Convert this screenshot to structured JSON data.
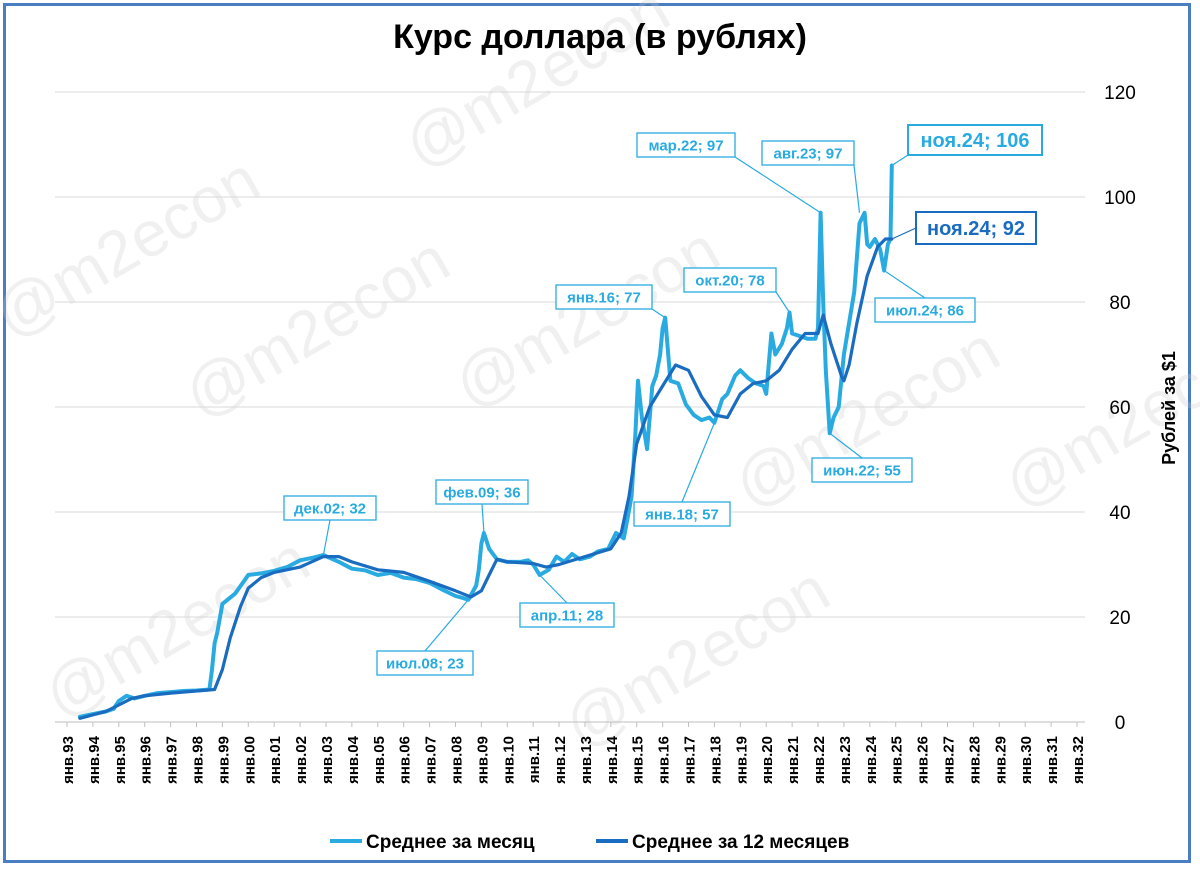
{
  "watermark": "@m2econ",
  "chart_data": {
    "type": "line",
    "title": "Курс доллара (в рублях)",
    "ylabel": "Рублей за $1",
    "xlabel": "",
    "ylim": [
      0,
      120
    ],
    "yticks": [
      0,
      20,
      40,
      60,
      80,
      100,
      120
    ],
    "xlim": [
      1993.5,
      2032
    ],
    "xticks": [
      "янв.93",
      "янв.94",
      "янв.95",
      "янв.96",
      "янв.97",
      "янв.98",
      "янв.99",
      "янв.00",
      "янв.01",
      "янв.02",
      "янв.03",
      "янв.04",
      "янв.05",
      "янв.06",
      "янв.07",
      "янв.08",
      "янв.09",
      "янв.10",
      "янв.11",
      "янв.12",
      "янв.13",
      "янв.14",
      "янв.15",
      "янв.16",
      "янв.17",
      "янв.18",
      "янв.19",
      "янв.20",
      "янв.21",
      "янв.22",
      "янв.23",
      "янв.24",
      "янв.25",
      "янв.26",
      "янв.27",
      "янв.28",
      "янв.29",
      "янв.30",
      "янв.31",
      "янв.32"
    ],
    "grid": true,
    "legend": "bottom",
    "colors": {
      "monthly": "#29abe2",
      "avg12": "#1a6cc0",
      "frame": "#4a7ec2"
    },
    "series": [
      {
        "name": "Среднее за месяц",
        "x": [
          1993.5,
          1994.0,
          1994.5,
          1994.8,
          1995.0,
          1995.3,
          1995.6,
          1996.0,
          1996.5,
          1997.0,
          1997.5,
          1998.0,
          1998.5,
          1998.6,
          1998.7,
          1998.8,
          1999.0,
          1999.5,
          2000.0,
          2000.5,
          2001.0,
          2001.5,
          2002.0,
          2002.5,
          2002.9,
          2003.5,
          2004.0,
          2004.5,
          2005.0,
          2005.5,
          2006.0,
          2006.5,
          2007.0,
          2007.5,
          2008.0,
          2008.3,
          2008.5,
          2008.8,
          2008.9,
          2009.0,
          2009.1,
          2009.3,
          2009.6,
          2010.0,
          2010.5,
          2010.8,
          2011.0,
          2011.25,
          2011.6,
          2011.9,
          2012.2,
          2012.5,
          2012.8,
          2013.2,
          2013.5,
          2013.9,
          2014.2,
          2014.5,
          2014.8,
          2014.95,
          2015.05,
          2015.2,
          2015.4,
          2015.6,
          2015.75,
          2015.9,
          2016.0,
          2016.1,
          2016.3,
          2016.6,
          2016.9,
          2017.2,
          2017.5,
          2017.8,
          2018.0,
          2018.3,
          2018.5,
          2018.8,
          2019.0,
          2019.3,
          2019.6,
          2019.9,
          2020.0,
          2020.2,
          2020.35,
          2020.6,
          2020.8,
          2020.9,
          2021.0,
          2021.3,
          2021.6,
          2021.9,
          2022.0,
          2022.1,
          2022.2,
          2022.3,
          2022.45,
          2022.6,
          2022.8,
          2023.0,
          2023.2,
          2023.4,
          2023.6,
          2023.8,
          2023.9,
          2024.0,
          2024.2,
          2024.4,
          2024.55,
          2024.7,
          2024.8,
          2024.85
        ],
        "values": [
          1.0,
          1.5,
          2.0,
          2.5,
          4.0,
          5.0,
          4.5,
          5.0,
          5.5,
          5.7,
          5.9,
          6.0,
          6.2,
          10.0,
          15.0,
          17.0,
          22.5,
          24.5,
          28.0,
          28.3,
          28.8,
          29.5,
          30.8,
          31.3,
          31.8,
          30.5,
          29.2,
          28.9,
          28.0,
          28.4,
          27.5,
          27.2,
          26.5,
          25.2,
          24.0,
          23.6,
          23.3,
          26.0,
          29.0,
          34.0,
          36.0,
          33.0,
          31.0,
          30.5,
          30.5,
          30.8,
          30.0,
          28.0,
          29.0,
          31.5,
          30.5,
          32.0,
          31.0,
          31.5,
          32.5,
          33.0,
          36.0,
          35.0,
          43.0,
          55.0,
          65.0,
          58.0,
          52.0,
          64.0,
          66.0,
          70.0,
          75.0,
          77.0,
          65.0,
          64.5,
          60.5,
          58.5,
          57.5,
          58.0,
          57.0,
          61.5,
          62.5,
          66.0,
          67.0,
          65.5,
          64.5,
          64.0,
          62.5,
          74.0,
          70.0,
          72.0,
          75.0,
          78.0,
          74.0,
          73.5,
          73.0,
          73.0,
          75.0,
          97.0,
          80.0,
          67.0,
          55.0,
          58.0,
          60.0,
          70.0,
          76.0,
          82.0,
          95.0,
          97.0,
          91.0,
          90.5,
          92.0,
          90.0,
          86.0,
          91.0,
          92.0,
          106.0
        ]
      },
      {
        "name": "Среднее за 12 месяцев",
        "x": [
          1993.5,
          1994.5,
          1995.5,
          1996.0,
          1997.0,
          1998.0,
          1998.7,
          1999.0,
          1999.3,
          1999.7,
          2000.0,
          2000.5,
          2001.0,
          2002.0,
          2002.9,
          2003.5,
          2004.0,
          2005.0,
          2006.0,
          2007.0,
          2008.0,
          2008.6,
          2009.0,
          2009.3,
          2009.6,
          2010.0,
          2011.0,
          2011.5,
          2012.0,
          2013.0,
          2014.0,
          2014.4,
          2014.7,
          2015.0,
          2015.5,
          2016.0,
          2016.5,
          2017.0,
          2017.5,
          2018.0,
          2018.5,
          2019.0,
          2019.5,
          2020.0,
          2020.5,
          2021.0,
          2021.5,
          2022.0,
          2022.2,
          2022.5,
          2022.9,
          2023.0,
          2023.2,
          2023.5,
          2023.9,
          2024.3,
          2024.6,
          2024.85
        ],
        "values": [
          0.7,
          2.0,
          4.5,
          5.0,
          5.5,
          5.9,
          6.2,
          10.0,
          16.0,
          22.0,
          25.5,
          27.5,
          28.5,
          29.5,
          31.5,
          31.5,
          30.5,
          29.0,
          28.5,
          26.8,
          25.0,
          23.8,
          25.0,
          28.0,
          31.0,
          30.5,
          30.2,
          29.5,
          30.0,
          31.5,
          33.0,
          36.0,
          43.0,
          53.0,
          60.0,
          64.0,
          68.0,
          67.0,
          62.0,
          58.5,
          58.0,
          62.5,
          64.5,
          65.0,
          67.0,
          71.0,
          74.0,
          74.0,
          77.5,
          72.0,
          66.0,
          65.0,
          68.0,
          76.0,
          85.0,
          90.5,
          92.0,
          92.0
        ]
      }
    ],
    "annotations": [
      {
        "text": "дек.02; 32",
        "x": 2002.9,
        "y": 31.8
      },
      {
        "text": "июл.08; 23",
        "x": 2008.5,
        "y": 23.3
      },
      {
        "text": "фев.09; 36",
        "x": 2009.1,
        "y": 36.0
      },
      {
        "text": "апр.11; 28",
        "x": 2011.25,
        "y": 28.0
      },
      {
        "text": "янв.16; 77",
        "x": 2016.1,
        "y": 77.0
      },
      {
        "text": "янв.18; 57",
        "x": 2018.0,
        "y": 57.0
      },
      {
        "text": "окт.20; 78",
        "x": 2020.9,
        "y": 78.0
      },
      {
        "text": "мар.22; 97",
        "x": 2022.1,
        "y": 97.0
      },
      {
        "text": "июн.22; 55",
        "x": 2022.45,
        "y": 55.0
      },
      {
        "text": "авг.23; 97",
        "x": 2023.6,
        "y": 97.0
      },
      {
        "text": "июл.24; 86",
        "x": 2024.55,
        "y": 86.0
      },
      {
        "text": "ноя.24; 106",
        "x": 2024.85,
        "y": 106.0
      },
      {
        "text": "ноя.24; 92",
        "x": 2024.85,
        "y": 92.0
      }
    ]
  }
}
